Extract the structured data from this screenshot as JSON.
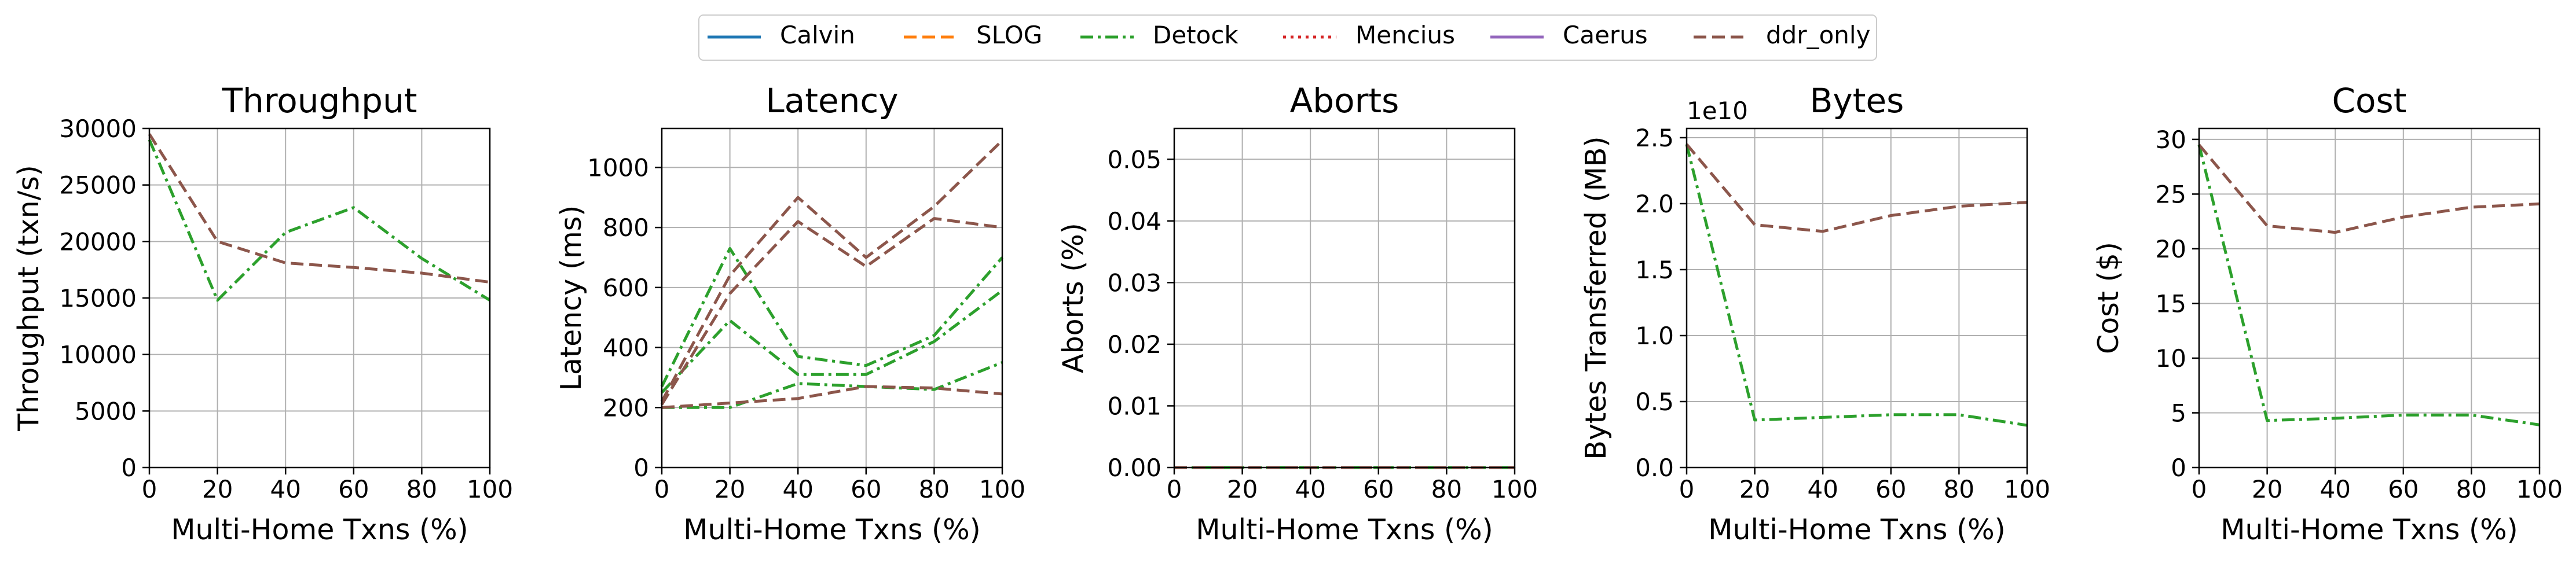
{
  "legend": {
    "entries": [
      {
        "name": "Calvin",
        "color": "#1f77b4",
        "dash": "solid"
      },
      {
        "name": "SLOG",
        "color": "#ff7f0e",
        "dash": "dashed"
      },
      {
        "name": "Detock",
        "color": "#2ca02c",
        "dash": "dashdot"
      },
      {
        "name": "Mencius",
        "color": "#d62728",
        "dash": "dotted"
      },
      {
        "name": "Caerus",
        "color": "#9467bd",
        "dash": "solid"
      },
      {
        "name": "ddr_only",
        "color": "#8c564b",
        "dash": "dashed"
      }
    ]
  },
  "chart_data": [
    {
      "type": "line",
      "title": "Throughput",
      "xlabel": "Multi-Home Txns (%)",
      "ylabel": "Throughput (txn/s)",
      "xlim": [
        0,
        100
      ],
      "ylim": [
        0,
        30000
      ],
      "xticks": [
        0,
        20,
        40,
        60,
        80,
        100
      ],
      "yticks": [
        0,
        5000,
        10000,
        15000,
        20000,
        25000,
        30000
      ],
      "ytick_labels": [
        "0",
        "5000",
        "10000",
        "15000",
        "20000",
        "25000",
        "30000"
      ],
      "grid": true,
      "x": [
        0,
        20,
        40,
        60,
        80,
        100
      ],
      "series": [
        {
          "name": "Detock",
          "values": [
            29000,
            14800,
            20800,
            23000,
            18500,
            14800
          ]
        },
        {
          "name": "ddr_only",
          "values": [
            29500,
            20000,
            18100,
            17700,
            17200,
            16400
          ]
        }
      ]
    },
    {
      "type": "line",
      "title": "Latency",
      "xlabel": "Multi-Home Txns (%)",
      "ylabel": "Latency (ms)",
      "xlim": [
        0,
        100
      ],
      "ylim": [
        0,
        1130
      ],
      "xticks": [
        0,
        20,
        40,
        60,
        80,
        100
      ],
      "yticks": [
        0,
        200,
        400,
        600,
        800,
        1000
      ],
      "ytick_labels": [
        "0",
        "200",
        "400",
        "600",
        "800",
        "1000"
      ],
      "grid": true,
      "x": [
        0,
        20,
        40,
        60,
        80,
        100
      ],
      "series": [
        {
          "name": "Detock",
          "values": [
            270,
            730,
            370,
            340,
            440,
            700
          ]
        },
        {
          "name": "Detock",
          "values": [
            250,
            490,
            310,
            310,
            420,
            590
          ]
        },
        {
          "name": "Detock",
          "values": [
            200,
            200,
            280,
            270,
            260,
            350
          ]
        },
        {
          "name": "ddr_only",
          "values": [
            220,
            640,
            900,
            700,
            870,
            1090
          ]
        },
        {
          "name": "ddr_only",
          "values": [
            210,
            580,
            820,
            670,
            830,
            800
          ]
        },
        {
          "name": "ddr_only",
          "values": [
            200,
            215,
            230,
            270,
            265,
            245
          ]
        }
      ]
    },
    {
      "type": "line",
      "title": "Aborts",
      "xlabel": "Multi-Home Txns (%)",
      "ylabel": "Aborts (%)",
      "xlim": [
        0,
        100
      ],
      "ylim": [
        0,
        0.055
      ],
      "xticks": [
        0,
        20,
        40,
        60,
        80,
        100
      ],
      "yticks": [
        0,
        0.01,
        0.02,
        0.03,
        0.04,
        0.05
      ],
      "ytick_labels": [
        "0.00",
        "0.01",
        "0.02",
        "0.03",
        "0.04",
        "0.05"
      ],
      "grid": true,
      "x": [
        0,
        20,
        40,
        60,
        80,
        100
      ],
      "series": [
        {
          "name": "Detock",
          "values": [
            0,
            0,
            0,
            0,
            0,
            0
          ]
        },
        {
          "name": "ddr_only",
          "values": [
            0,
            0,
            0,
            0,
            0,
            0
          ]
        }
      ]
    },
    {
      "type": "line",
      "title": "Bytes",
      "xlabel": "Multi-Home Txns (%)",
      "ylabel": "Bytes Transferred (MB)",
      "offset_label": "1e10",
      "xlim": [
        0,
        100
      ],
      "ylim": [
        0,
        2.57
      ],
      "xticks": [
        0,
        20,
        40,
        60,
        80,
        100
      ],
      "yticks": [
        0,
        0.5,
        1.0,
        1.5,
        2.0,
        2.5
      ],
      "ytick_labels": [
        "0.0",
        "0.5",
        "1.0",
        "1.5",
        "2.0",
        "2.5"
      ],
      "grid": true,
      "x": [
        0,
        20,
        40,
        60,
        80,
        100
      ],
      "series": [
        {
          "name": "Detock",
          "values": [
            2.45,
            0.36,
            0.38,
            0.4,
            0.4,
            0.32
          ]
        },
        {
          "name": "ddr_only",
          "values": [
            2.45,
            1.84,
            1.79,
            1.91,
            1.98,
            2.01
          ]
        }
      ]
    },
    {
      "type": "line",
      "title": "Cost",
      "xlabel": "Multi-Home Txns (%)",
      "ylabel": "Cost ($)",
      "xlim": [
        0,
        100
      ],
      "ylim": [
        0,
        31
      ],
      "xticks": [
        0,
        20,
        40,
        60,
        80,
        100
      ],
      "yticks": [
        0,
        5,
        10,
        15,
        20,
        25,
        30
      ],
      "ytick_labels": [
        "0",
        "5",
        "10",
        "15",
        "20",
        "25",
        "30"
      ],
      "grid": true,
      "x": [
        0,
        20,
        40,
        60,
        80,
        100
      ],
      "series": [
        {
          "name": "Detock",
          "values": [
            29.5,
            4.3,
            4.5,
            4.8,
            4.8,
            3.9
          ]
        },
        {
          "name": "ddr_only",
          "values": [
            29.5,
            22.1,
            21.5,
            22.9,
            23.8,
            24.1
          ]
        }
      ]
    }
  ]
}
